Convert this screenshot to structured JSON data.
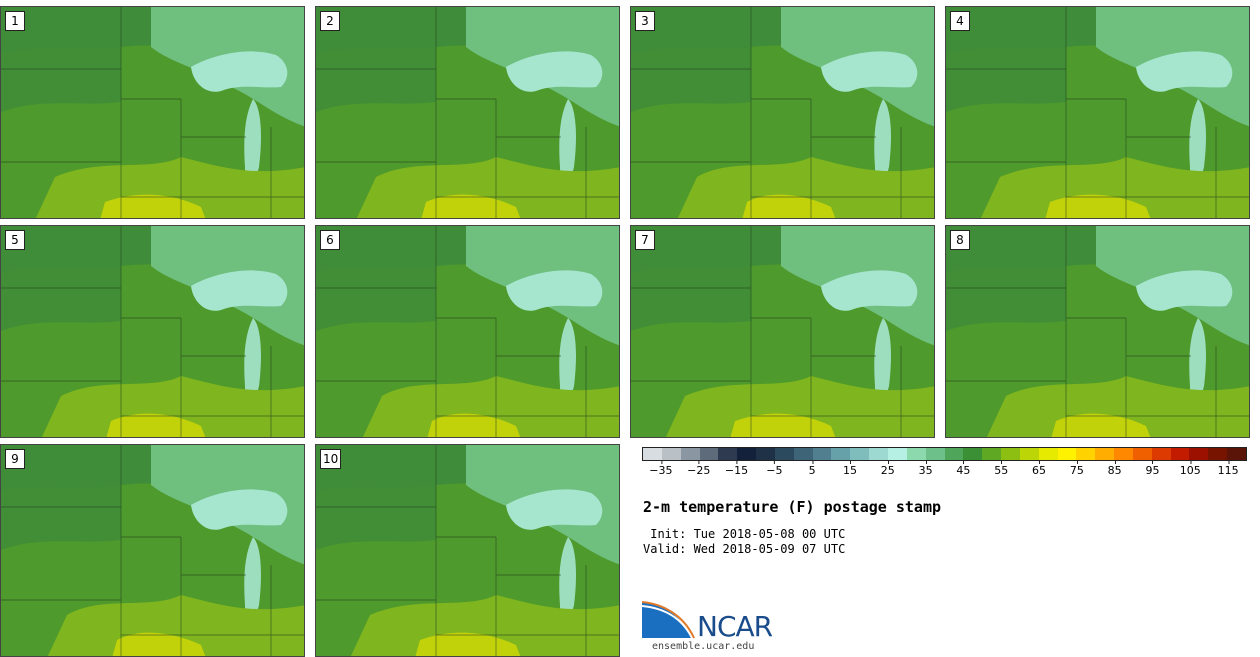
{
  "panels": [
    "1",
    "2",
    "3",
    "4",
    "5",
    "6",
    "7",
    "8",
    "9",
    "10"
  ],
  "colors": {
    "base": "#4e9a2c",
    "north": "#3f8c3a",
    "cool": "#6fbf7f",
    "coolest": "#a6e6cf",
    "warm": "#7fb51e",
    "warmest": "#c2d20a",
    "lake": "#c8efe8"
  },
  "colorbar": {
    "swatches": [
      "#d7dde0",
      "#b9c1c7",
      "#8a96a1",
      "#5e6b7b",
      "#2e3a50",
      "#14213a",
      "#1f3147",
      "#2c4a5e",
      "#3e6477",
      "#517f8f",
      "#66a0a8",
      "#7fbdbc",
      "#9dd9d0",
      "#b6efe3",
      "#8cd9ad",
      "#6ec08a",
      "#4fa65a",
      "#3b8f34",
      "#5ea823",
      "#8cbf12",
      "#bbd506",
      "#e6ea00",
      "#fff200",
      "#ffd200",
      "#ffad00",
      "#ff8800",
      "#f06000",
      "#dc3a00",
      "#c21b00",
      "#9c1000",
      "#761400",
      "#5a1408"
    ],
    "ticks": [
      "−35",
      "−25",
      "−15",
      "−5",
      "5",
      "15",
      "25",
      "35",
      "45",
      "55",
      "65",
      "75",
      "85",
      "95",
      "105",
      "115"
    ]
  },
  "title": "2-m temperature (F) postage stamp",
  "init": " Init: Tue 2018-05-08 00 UTC",
  "valid": "Valid: Wed 2018-05-09 07 UTC",
  "logo": {
    "name": "NCAR",
    "url": "ensemble.ucar.edu"
  }
}
